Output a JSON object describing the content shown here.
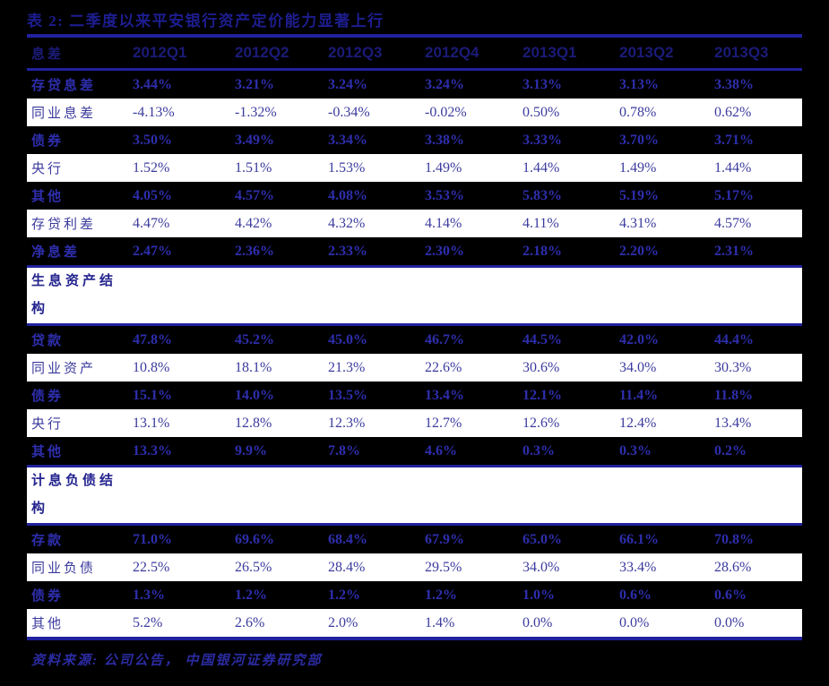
{
  "title": "表 2:  二季度以来平安银行资产定价能力显著上行",
  "colors": {
    "page_background": "#000000",
    "rule_line": "#21219e",
    "header_text": "#1b1b78",
    "dark_row_text": "#2e2ead",
    "light_row_background": "#ffffff",
    "light_row_text": "#3b3b9e",
    "title_text": "#1d1d8f",
    "footer_text": "#2b2ba2"
  },
  "table": {
    "header": [
      "息差",
      "2012Q1",
      "2012Q2",
      "2012Q3",
      "2012Q4",
      "2013Q1",
      "2013Q2",
      "2013Q3"
    ],
    "rows": [
      {
        "type": "dark",
        "label": "存贷息差",
        "values": [
          "3.44%",
          "3.21%",
          "3.24%",
          "3.24%",
          "3.13%",
          "3.13%",
          "3.38%"
        ]
      },
      {
        "type": "light",
        "label": "同业息差",
        "values": [
          "-4.13%",
          "-1.32%",
          "-0.34%",
          "-0.02%",
          "0.50%",
          "0.78%",
          "0.62%"
        ]
      },
      {
        "type": "dark",
        "label": "债券",
        "values": [
          "3.50%",
          "3.49%",
          "3.34%",
          "3.38%",
          "3.33%",
          "3.70%",
          "3.71%"
        ]
      },
      {
        "type": "light",
        "label": "央行",
        "values": [
          "1.52%",
          "1.51%",
          "1.53%",
          "1.49%",
          "1.44%",
          "1.49%",
          "1.44%"
        ]
      },
      {
        "type": "dark",
        "label": "其他",
        "values": [
          "4.05%",
          "4.57%",
          "4.08%",
          "3.53%",
          "5.83%",
          "5.19%",
          "5.17%"
        ]
      },
      {
        "type": "light",
        "label": "存贷利差",
        "values": [
          "4.47%",
          "4.42%",
          "4.32%",
          "4.14%",
          "4.11%",
          "4.31%",
          "4.57%"
        ]
      },
      {
        "type": "dark",
        "label": "净息差",
        "values": [
          "2.47%",
          "2.36%",
          "2.33%",
          "2.30%",
          "2.18%",
          "2.20%",
          "2.31%"
        ]
      },
      {
        "type": "section",
        "label": "生息资产结构",
        "values": []
      },
      {
        "type": "dark",
        "label": "贷款",
        "values": [
          "47.8%",
          "45.2%",
          "45.0%",
          "46.7%",
          "44.5%",
          "42.0%",
          "44.4%"
        ]
      },
      {
        "type": "light",
        "label": "同业资产",
        "values": [
          "10.8%",
          "18.1%",
          "21.3%",
          "22.6%",
          "30.6%",
          "34.0%",
          "30.3%"
        ]
      },
      {
        "type": "dark",
        "label": "债券",
        "values": [
          "15.1%",
          "14.0%",
          "13.5%",
          "13.4%",
          "12.1%",
          "11.4%",
          "11.8%"
        ]
      },
      {
        "type": "light",
        "label": "央行",
        "values": [
          "13.1%",
          "12.8%",
          "12.3%",
          "12.7%",
          "12.6%",
          "12.4%",
          "13.4%"
        ]
      },
      {
        "type": "dark",
        "label": "其他",
        "values": [
          "13.3%",
          "9.9%",
          "7.8%",
          "4.6%",
          "0.3%",
          "0.3%",
          "0.2%"
        ]
      },
      {
        "type": "section",
        "label": "计息负债结构",
        "values": []
      },
      {
        "type": "dark",
        "label": "存款",
        "values": [
          "71.0%",
          "69.6%",
          "68.4%",
          "67.9%",
          "65.0%",
          "66.1%",
          "70.8%"
        ]
      },
      {
        "type": "light",
        "label": "同业负债",
        "values": [
          "22.5%",
          "26.5%",
          "28.4%",
          "29.5%",
          "34.0%",
          "33.4%",
          "28.6%"
        ]
      },
      {
        "type": "dark",
        "label": "债券",
        "values": [
          "1.3%",
          "1.2%",
          "1.2%",
          "1.2%",
          "1.0%",
          "0.6%",
          "0.6%"
        ]
      },
      {
        "type": "light",
        "label": "其他",
        "values": [
          "5.2%",
          "2.6%",
          "2.0%",
          "1.4%",
          "0.0%",
          "0.0%",
          "0.0%"
        ]
      }
    ]
  },
  "footer": {
    "source": "资料来源:  公司公告，  中国银河证券研究部"
  }
}
